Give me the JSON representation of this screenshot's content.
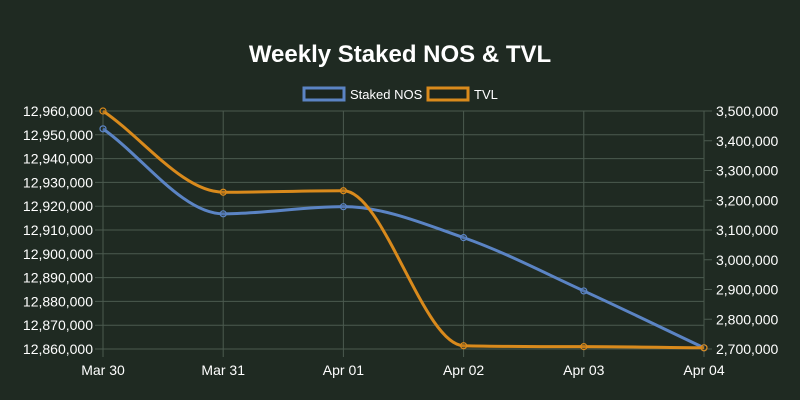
{
  "chart_data": {
    "type": "line",
    "title": "Weekly Staked NOS & TVL",
    "categories": [
      "Mar 30",
      "Mar 31",
      "Apr 01",
      "Apr 02",
      "Apr 03",
      "Apr 04"
    ],
    "y_left": {
      "min": 12860000,
      "max": 12960000,
      "step": 10000,
      "ticks": [
        "12,960,000",
        "12,950,000",
        "12,940,000",
        "12,930,000",
        "12,920,000",
        "12,910,000",
        "12,900,000",
        "12,890,000",
        "12,880,000",
        "12,870,000",
        "12,860,000"
      ]
    },
    "y_right": {
      "min": 2700000,
      "max": 3500000,
      "step": 100000,
      "ticks": [
        "3,500,000",
        "3,400,000",
        "3,300,000",
        "3,200,000",
        "3,100,000",
        "3,000,000",
        "2,900,000",
        "2,800,000",
        "2,700,000"
      ]
    },
    "series": [
      {
        "name": "Staked NOS",
        "axis": "left",
        "color": "#5b84c4",
        "values": [
          12952500,
          12916800,
          12919800,
          12906800,
          12884400,
          12860500
        ]
      },
      {
        "name": "TVL",
        "axis": "right",
        "color": "#d98a1c",
        "values": [
          3500000,
          3227000,
          3232000,
          2711000,
          2708000,
          2704000
        ]
      }
    ],
    "legend_position": "top-center",
    "grid": true
  }
}
